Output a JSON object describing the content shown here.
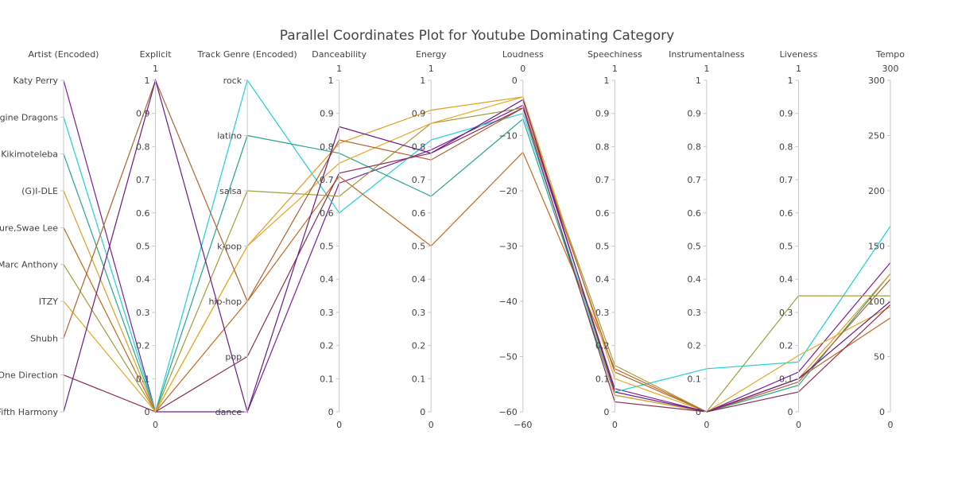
{
  "chart_data": {
    "type": "parallel_coordinates",
    "title": "Parallel Coordinates Plot for Youtube Dominating Category",
    "dimensions": [
      {
        "key": "artist",
        "label": "Artist (Encoded)",
        "range": [
          0,
          9
        ],
        "show_range": false,
        "ticks": [
          [
            9,
            "Katy Perry"
          ],
          [
            8,
            "Imagine Dragons"
          ],
          [
            7,
            "Jvke,Zerb,Kikimoteleba"
          ],
          [
            6,
            "(G)I-DLE"
          ],
          [
            5,
            "Metro Boomin,Future,Swae Lee"
          ],
          [
            4,
            "Marc Anthony"
          ],
          [
            3,
            "ITZY"
          ],
          [
            2,
            "Shubh"
          ],
          [
            1,
            "One Direction"
          ],
          [
            0,
            "Fifth Harmony"
          ]
        ]
      },
      {
        "key": "explicit",
        "label": "Explicit",
        "range": [
          0,
          1
        ],
        "show_range": true,
        "ticks": [
          [
            1,
            "1"
          ],
          [
            0.9,
            "0.9"
          ],
          [
            0.8,
            "0.8"
          ],
          [
            0.7,
            "0.7"
          ],
          [
            0.6,
            "0.6"
          ],
          [
            0.5,
            "0.5"
          ],
          [
            0.4,
            "0.4"
          ],
          [
            0.3,
            "0.3"
          ],
          [
            0.2,
            "0.2"
          ],
          [
            0.1,
            "0.1"
          ],
          [
            0,
            "0"
          ]
        ]
      },
      {
        "key": "genre",
        "label": "Track Genre (Encoded)",
        "range": [
          0,
          6
        ],
        "show_range": false,
        "ticks": [
          [
            6,
            "rock"
          ],
          [
            5,
            "latino"
          ],
          [
            4,
            "salsa"
          ],
          [
            3,
            "k-pop"
          ],
          [
            2,
            "hip-hop"
          ],
          [
            1,
            "pop"
          ],
          [
            0,
            "dance"
          ]
        ]
      },
      {
        "key": "danceability",
        "label": "Danceability",
        "range": [
          0,
          1
        ],
        "show_range": true,
        "ticks": [
          [
            1,
            "1"
          ],
          [
            0.9,
            "0.9"
          ],
          [
            0.8,
            "0.8"
          ],
          [
            0.7,
            "0.7"
          ],
          [
            0.6,
            "0.6"
          ],
          [
            0.5,
            "0.5"
          ],
          [
            0.4,
            "0.4"
          ],
          [
            0.3,
            "0.3"
          ],
          [
            0.2,
            "0.2"
          ],
          [
            0.1,
            "0.1"
          ],
          [
            0,
            "0"
          ]
        ]
      },
      {
        "key": "energy",
        "label": "Energy",
        "range": [
          0,
          1
        ],
        "show_range": true,
        "ticks": [
          [
            1,
            "1"
          ],
          [
            0.9,
            "0.9"
          ],
          [
            0.8,
            "0.8"
          ],
          [
            0.7,
            "0.7"
          ],
          [
            0.6,
            "0.6"
          ],
          [
            0.5,
            "0.5"
          ],
          [
            0.4,
            "0.4"
          ],
          [
            0.3,
            "0.3"
          ],
          [
            0.2,
            "0.2"
          ],
          [
            0.1,
            "0.1"
          ],
          [
            0,
            "0"
          ]
        ]
      },
      {
        "key": "loudness",
        "label": "Loudness",
        "range": [
          -60,
          0
        ],
        "show_range": true,
        "ticks": [
          [
            0,
            "0"
          ],
          [
            -10,
            "−10"
          ],
          [
            -20,
            "−20"
          ],
          [
            -30,
            "−30"
          ],
          [
            -40,
            "−40"
          ],
          [
            -50,
            "−50"
          ],
          [
            -60,
            "−60"
          ]
        ]
      },
      {
        "key": "speechiness",
        "label": "Speechiness",
        "range": [
          0,
          1
        ],
        "show_range": true,
        "ticks": [
          [
            1,
            "1"
          ],
          [
            0.9,
            "0.9"
          ],
          [
            0.8,
            "0.8"
          ],
          [
            0.7,
            "0.7"
          ],
          [
            0.6,
            "0.6"
          ],
          [
            0.5,
            "0.5"
          ],
          [
            0.4,
            "0.4"
          ],
          [
            0.3,
            "0.3"
          ],
          [
            0.2,
            "0.2"
          ],
          [
            0.1,
            "0.1"
          ],
          [
            0,
            "0"
          ]
        ]
      },
      {
        "key": "instrumentalness",
        "label": "Instrumentalness",
        "range": [
          0,
          1
        ],
        "show_range": true,
        "ticks": [
          [
            1,
            "1"
          ],
          [
            0.9,
            "0.9"
          ],
          [
            0.8,
            "0.8"
          ],
          [
            0.7,
            "0.7"
          ],
          [
            0.6,
            "0.6"
          ],
          [
            0.5,
            "0.5"
          ],
          [
            0.4,
            "0.4"
          ],
          [
            0.3,
            "0.3"
          ],
          [
            0.2,
            "0.2"
          ],
          [
            0.1,
            "0.1"
          ],
          [
            0,
            "0"
          ]
        ]
      },
      {
        "key": "liveness",
        "label": "Liveness",
        "range": [
          0,
          1
        ],
        "show_range": true,
        "ticks": [
          [
            1,
            "1"
          ],
          [
            0.9,
            "0.9"
          ],
          [
            0.8,
            "0.8"
          ],
          [
            0.7,
            "0.7"
          ],
          [
            0.6,
            "0.6"
          ],
          [
            0.5,
            "0.5"
          ],
          [
            0.4,
            "0.4"
          ],
          [
            0.3,
            "0.3"
          ],
          [
            0.2,
            "0.2"
          ],
          [
            0.1,
            "0.1"
          ],
          [
            0,
            "0"
          ]
        ]
      },
      {
        "key": "tempo",
        "label": "Tempo",
        "range": [
          0,
          300
        ],
        "show_range": true,
        "ticks": [
          [
            300,
            "300"
          ],
          [
            250,
            "250"
          ],
          [
            200,
            "200"
          ],
          [
            150,
            "150"
          ],
          [
            100,
            "100"
          ],
          [
            50,
            "50"
          ],
          [
            0,
            "0"
          ]
        ]
      }
    ],
    "series": [
      {
        "color": "#7a1f9a",
        "values": [
          9,
          0,
          0,
          0.69,
          0.79,
          -4.5,
          0.07,
          0,
          0.12,
          135
        ]
      },
      {
        "color": "#1fd1d9",
        "values": [
          8,
          0,
          6,
          0.6,
          0.82,
          -6,
          0.06,
          0.13,
          0.15,
          168
        ]
      },
      {
        "color": "#26a690",
        "values": [
          7,
          0,
          5,
          0.78,
          0.65,
          -7,
          0.05,
          0,
          0.08,
          125
        ]
      },
      {
        "color": "#e0a020",
        "values": [
          6,
          0,
          3,
          0.81,
          0.91,
          -3,
          0.05,
          0,
          0.1,
          125
        ]
      },
      {
        "color": "#c8681e",
        "values": [
          5,
          0,
          2,
          0.71,
          0.5,
          -13,
          0.13,
          0,
          0.1,
          85
        ]
      },
      {
        "color": "#9e9e3c",
        "values": [
          4,
          0,
          4,
          0.65,
          0.87,
          -5,
          0.14,
          0,
          0.35,
          105
        ]
      },
      {
        "color": "#e8a826",
        "values": [
          3,
          0,
          3,
          0.75,
          0.87,
          -3,
          0.1,
          0,
          0.17,
          95
        ]
      },
      {
        "color": "#b5612e",
        "values": [
          2,
          1,
          2,
          0.82,
          0.76,
          -5,
          0.12,
          0,
          0.09,
          120
        ]
      },
      {
        "color": "#8c2f52",
        "values": [
          1,
          0,
          1,
          0.72,
          0.78,
          -5,
          0.03,
          0,
          0.06,
          97
        ]
      },
      {
        "color": "#6a1b8a",
        "values": [
          0,
          1,
          0,
          0.86,
          0.78,
          -3.5,
          0.06,
          0,
          0.1,
          100
        ]
      }
    ]
  }
}
